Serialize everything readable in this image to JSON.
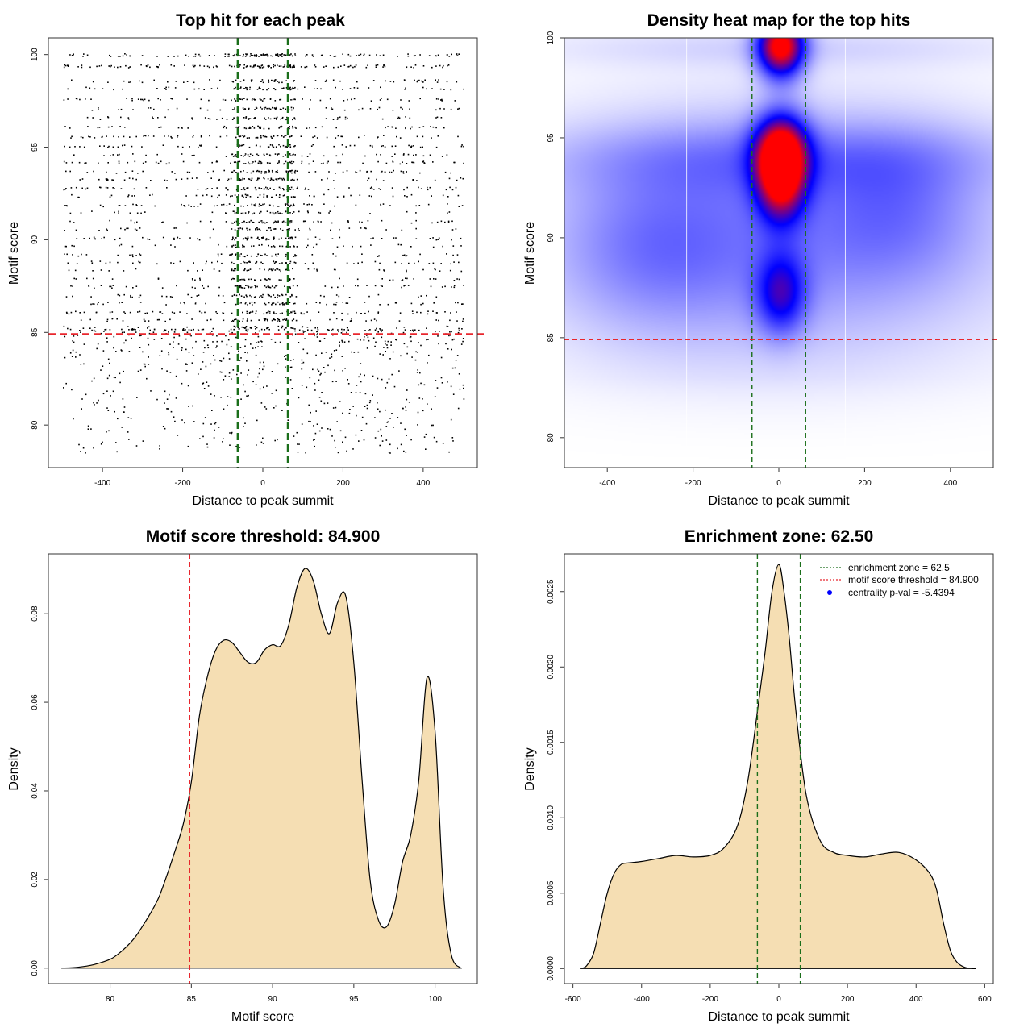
{
  "colors": {
    "background": "#ffffff",
    "points": "#000000",
    "threshold_line": "#e8262d",
    "zone_line": "#1a6e1a",
    "density_fill": "#f5deb3",
    "density_line": "#000000",
    "heat_low": "#ffffff",
    "heat_mid": "#0000ff",
    "heat_high": "#ff0000",
    "legend_point": "#0000ff"
  },
  "chart_data": [
    {
      "id": "scatter",
      "type": "scatter",
      "title": "Top hit for each peak",
      "xlabel": "Distance to peak summit",
      "ylabel": "Motif score",
      "xlim": [
        -535,
        535
      ],
      "ylim": [
        77.7,
        100.9
      ],
      "xticks": [
        -400,
        -200,
        0,
        200,
        400
      ],
      "yticks": [
        80,
        85,
        90,
        95,
        100
      ],
      "x_range": [
        -500,
        500
      ],
      "score_levels": [
        100,
        99.4,
        98.6,
        98.2,
        97.6,
        97.1,
        96.6,
        96.1,
        95.6,
        95.1,
        94.6,
        94.2,
        93.7,
        93.3,
        92.8,
        92.4,
        91.9,
        91.5,
        91.0,
        90.6,
        90.1,
        89.7,
        89.2,
        88.8,
        88.4,
        87.9,
        87.5,
        87.0,
        86.6,
        86.1,
        85.7,
        85.3
      ],
      "low_score_range": [
        78.5,
        85.2
      ],
      "hlines": [
        {
          "y": 84.9,
          "style": "threshold"
        }
      ],
      "vlines": [
        {
          "x": -62.5,
          "style": "zone"
        },
        {
          "x": 62.5,
          "style": "zone"
        }
      ]
    },
    {
      "id": "heatmap",
      "type": "heatmap",
      "title": "Density heat map for the top hits",
      "xlabel": "Distance to peak summit",
      "ylabel": "Motif score",
      "xlim": [
        -500,
        500
      ],
      "ylim": [
        78.5,
        100
      ],
      "xticks": [
        -400,
        -200,
        0,
        200,
        400
      ],
      "yticks": [
        80,
        85,
        90,
        95,
        100
      ],
      "blobs": [
        {
          "x": 5,
          "y": 99.6,
          "sx": 38,
          "sy": 1.1,
          "w": 1.0
        },
        {
          "x": 5,
          "y": 94.3,
          "sx": 42,
          "sy": 1.3,
          "w": 0.95
        },
        {
          "x": 5,
          "y": 92.5,
          "sx": 38,
          "sy": 1.3,
          "w": 0.6
        },
        {
          "x": 5,
          "y": 87.2,
          "sx": 40,
          "sy": 1.4,
          "w": 0.45
        },
        {
          "x": 0,
          "y": 90,
          "sx": 380,
          "sy": 4.3,
          "w": 0.26
        },
        {
          "x": 0,
          "y": 94,
          "sx": 420,
          "sy": 1.3,
          "w": 0.16
        },
        {
          "x": 0,
          "y": 99.5,
          "sx": 420,
          "sy": 0.7,
          "w": 0.08
        },
        {
          "x": 280,
          "y": 91.5,
          "sx": 130,
          "sy": 2.5,
          "w": 0.14
        },
        {
          "x": -300,
          "y": 89.5,
          "sx": 150,
          "sy": 2.8,
          "w": 0.14
        }
      ],
      "hlines": [
        {
          "y": 84.9,
          "style": "threshold"
        }
      ],
      "vlines": [
        {
          "x": -62.5,
          "style": "zone"
        },
        {
          "x": 62.5,
          "style": "zone"
        }
      ]
    },
    {
      "id": "score_density",
      "type": "area",
      "title": "Motif score threshold: 84.900",
      "xlabel": "Motif score",
      "ylabel": "Density",
      "xlim": [
        76.2,
        102.6
      ],
      "ylim": [
        -0.0035,
        0.0935
      ],
      "xticks": [
        80,
        85,
        90,
        95,
        100
      ],
      "yticks": [
        0.0,
        0.02,
        0.04,
        0.06,
        0.08
      ],
      "ytick_labels": [
        "0.00",
        "0.02",
        "0.04",
        "0.06",
        "0.08"
      ],
      "x": [
        77,
        78,
        79,
        80,
        80.5,
        81,
        81.5,
        82,
        82.5,
        83,
        83.5,
        84,
        84.5,
        85,
        85.5,
        86,
        86.5,
        87,
        87.5,
        88,
        88.5,
        89,
        89.5,
        90,
        90.5,
        91,
        91.5,
        92,
        92.5,
        93,
        93.5,
        94,
        94.5,
        95,
        95.5,
        96,
        96.5,
        97,
        97.5,
        98,
        98.5,
        99,
        99.5,
        100,
        100.5,
        101,
        101.6
      ],
      "y": [
        0.0,
        0.0002,
        0.0008,
        0.002,
        0.0032,
        0.0048,
        0.0068,
        0.0095,
        0.0125,
        0.016,
        0.021,
        0.0265,
        0.0325,
        0.042,
        0.057,
        0.066,
        0.0718,
        0.074,
        0.0735,
        0.0712,
        0.069,
        0.069,
        0.0718,
        0.073,
        0.0728,
        0.0775,
        0.086,
        0.0902,
        0.0875,
        0.08,
        0.0755,
        0.0825,
        0.084,
        0.069,
        0.043,
        0.02,
        0.011,
        0.0093,
        0.0142,
        0.024,
        0.03,
        0.0425,
        0.0655,
        0.0535,
        0.018,
        0.003,
        0.0
      ],
      "vlines": [
        {
          "x": 84.9,
          "style": "threshold"
        }
      ]
    },
    {
      "id": "distance_density",
      "type": "area",
      "title": "Enrichment zone: 62.50",
      "xlabel": "Distance to peak summit",
      "ylabel": "Density",
      "xlim": [
        -625,
        625
      ],
      "ylim": [
        -0.0001,
        0.00275
      ],
      "xticks": [
        -600,
        -400,
        -200,
        0,
        200,
        400,
        600
      ],
      "yticks": [
        0.0,
        0.0005,
        0.001,
        0.0015,
        0.002,
        0.0025
      ],
      "ytick_labels": [
        "0.0000",
        "0.0005",
        "0.0010",
        "0.0015",
        "0.0020",
        "0.0025"
      ],
      "x": [
        -575,
        -560,
        -540,
        -520,
        -500,
        -480,
        -460,
        -440,
        -400,
        -350,
        -300,
        -250,
        -200,
        -160,
        -120,
        -90,
        -60,
        -40,
        -20,
        0,
        15,
        30,
        50,
        80,
        120,
        160,
        200,
        250,
        300,
        350,
        400,
        440,
        460,
        480,
        500,
        520,
        540,
        560,
        575
      ],
      "y": [
        0.0,
        2e-05,
        0.0001,
        0.0003,
        0.0005,
        0.00063,
        0.00069,
        0.0007,
        0.00071,
        0.00073,
        0.00075,
        0.00074,
        0.00075,
        0.0008,
        0.00095,
        0.00125,
        0.00175,
        0.0021,
        0.0025,
        0.00268,
        0.0025,
        0.0022,
        0.0017,
        0.00115,
        0.00085,
        0.00077,
        0.00075,
        0.00074,
        0.00076,
        0.00077,
        0.00072,
        0.00063,
        0.00052,
        0.0003,
        0.00012,
        4e-05,
        1e-05,
        0.0,
        0.0
      ],
      "vlines": [
        {
          "x": -62.5,
          "style": "zone"
        },
        {
          "x": 62.5,
          "style": "zone"
        }
      ],
      "legend": {
        "position": "top-right",
        "entries": [
          {
            "label": "enrichment zone = 62.5",
            "kind": "dotted-line",
            "color": "#1a6e1a"
          },
          {
            "label": "motif score threshold = 84.900",
            "kind": "dotted-line",
            "color": "#e8262d"
          },
          {
            "label": "centrality p-val = -5.4394",
            "kind": "point",
            "color": "#0000ff"
          }
        ]
      }
    }
  ]
}
